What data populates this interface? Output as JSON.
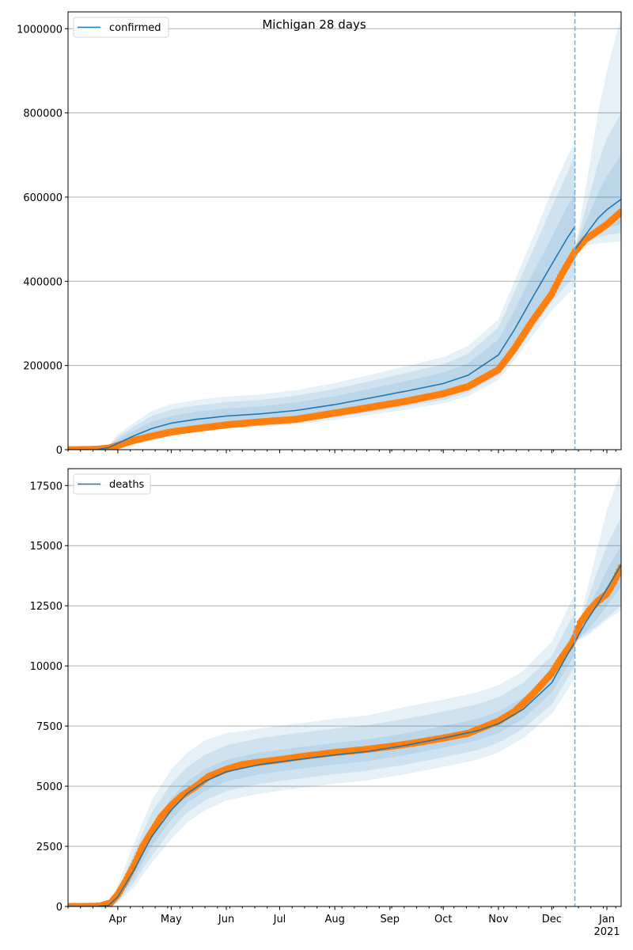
{
  "chart_data": [
    {
      "type": "line",
      "title": "Michigan 28 days",
      "legend": {
        "label": "confirmed",
        "placement": "top-left"
      },
      "xlabel": "",
      "ylabel": "",
      "x_range": [
        "2020-03-04",
        "2021-01-09"
      ],
      "ylim": [
        0,
        1040000
      ],
      "yticks": [
        0,
        200000,
        400000,
        600000,
        800000,
        1000000
      ],
      "ytick_labels": [
        "0",
        "200000",
        "400000",
        "600000",
        "800000",
        "1000000"
      ],
      "grid": "horizontal",
      "forecast_start": "2020-12-14",
      "model": {
        "dates": [
          "2020-03-04",
          "2020-03-20",
          "2020-03-27",
          "2020-04-01",
          "2020-04-10",
          "2020-04-20",
          "2020-05-01",
          "2020-05-15",
          "2020-06-01",
          "2020-06-20",
          "2020-07-10",
          "2020-08-01",
          "2020-08-20",
          "2020-09-10",
          "2020-10-01",
          "2020-10-15",
          "2020-11-01",
          "2020-11-10",
          "2020-11-20",
          "2020-12-01",
          "2020-12-10",
          "2020-12-14"
        ],
        "median": [
          0,
          0,
          5000,
          15000,
          33000,
          50000,
          63000,
          72000,
          80000,
          85000,
          93000,
          107000,
          122000,
          139000,
          157000,
          177000,
          225000,
          285000,
          360000,
          440000,
          505000,
          530000
        ],
        "bands": [
          {
            "lower": [
              0,
              0,
              3000,
              10000,
              24000,
              37000,
              47000,
              55000,
              62000,
              66000,
              73000,
              85000,
              98000,
              113000,
              129000,
              147000,
              190000,
              240000,
              305000,
              375000,
              425000,
              445000
            ],
            "upper": [
              0,
              0,
              8000,
              24000,
              45000,
              66000,
              80000,
              90000,
              98000,
              103000,
              112000,
              127000,
              144000,
              163000,
              183000,
              205000,
              262000,
              330000,
              415000,
              505000,
              580000,
              610000
            ]
          },
          {
            "lower": [
              0,
              0,
              2000,
              7000,
              18000,
              30000,
              40000,
              48000,
              55000,
              59000,
              66000,
              77000,
              89000,
              103000,
              118000,
              136000,
              177000,
              225000,
              285000,
              350000,
              395000,
              410000
            ],
            "upper": [
              0,
              0,
              10000,
              30000,
              55000,
              80000,
              95000,
              105000,
              113000,
              118000,
              128000,
              144000,
              162000,
              182000,
              203000,
              228000,
              290000,
              375000,
              470000,
              575000,
              660000,
              700000
            ]
          },
          {
            "lower": [
              0,
              0,
              1500,
              5000,
              14000,
              25000,
              35000,
              43000,
              50000,
              54000,
              60000,
              71000,
              82000,
              95000,
              110000,
              127000,
              166000,
              212000,
              270000,
              330000,
              370000,
              385000
            ],
            "upper": [
              0,
              0,
              12000,
              36000,
              64000,
              92000,
              108000,
              118000,
              126000,
              131000,
              141000,
              158000,
              177000,
              198000,
              220000,
              247000,
              310000,
              400000,
              500000,
              615000,
              700000,
              730000
            ]
          }
        ]
      },
      "forecast": {
        "dates": [
          "2020-12-14",
          "2020-12-20",
          "2020-12-27",
          "2021-01-01",
          "2021-01-09"
        ],
        "median": [
          475000,
          510000,
          550000,
          570000,
          595000
        ],
        "bands": [
          {
            "lower": [
              475000,
              495000,
              515000,
              525000,
              535000
            ],
            "upper": [
              475000,
              540000,
              610000,
              650000,
              700000
            ]
          },
          {
            "lower": [
              475000,
              490000,
              505000,
              510000,
              515000
            ],
            "upper": [
              475000,
              570000,
              680000,
              740000,
              800000
            ]
          },
          {
            "lower": [
              475000,
              485000,
              490000,
              492000,
              495000
            ],
            "upper": [
              475000,
              620000,
              800000,
              900000,
              1030000
            ]
          }
        ]
      },
      "observed": {
        "dates": [
          "2020-03-04",
          "2020-03-10",
          "2020-03-20",
          "2020-03-27",
          "2020-04-01",
          "2020-04-10",
          "2020-04-20",
          "2020-05-01",
          "2020-05-15",
          "2020-06-01",
          "2020-06-20",
          "2020-07-10",
          "2020-08-01",
          "2020-08-20",
          "2020-09-10",
          "2020-10-01",
          "2020-10-15",
          "2020-11-01",
          "2020-11-10",
          "2020-11-20",
          "2020-12-01",
          "2020-12-07",
          "2020-12-14",
          "2020-12-20",
          "2020-12-27",
          "2021-01-01",
          "2021-01-09"
        ],
        "values": [
          0,
          0,
          1000,
          4000,
          10000,
          22000,
          32000,
          42000,
          50000,
          59000,
          66000,
          72000,
          87000,
          100000,
          115000,
          133000,
          150000,
          190000,
          240000,
          305000,
          370000,
          420000,
          470000,
          500000,
          520000,
          535000,
          565000
        ]
      },
      "colors": {
        "model": "#1f77b4",
        "observed": "#ff7f0e",
        "band": "#1f77b4",
        "forecast_line": "#1f77b4"
      }
    },
    {
      "type": "line",
      "legend": {
        "label": "deaths",
        "placement": "top-left"
      },
      "xlabel": "",
      "ylabel": "",
      "x_range": [
        "2020-03-04",
        "2021-01-09"
      ],
      "x_tick_labels": [
        "Apr",
        "May",
        "Jun",
        "Jul",
        "Aug",
        "Sep",
        "Oct",
        "Nov",
        "Dec",
        "Jan"
      ],
      "x_tick_dates": [
        "2020-04-01",
        "2020-05-01",
        "2020-06-01",
        "2020-07-01",
        "2020-08-01",
        "2020-09-01",
        "2020-10-01",
        "2020-11-01",
        "2020-12-01",
        "2021-01-01"
      ],
      "x_year_label": "2021",
      "ylim": [
        0,
        18200
      ],
      "yticks": [
        0,
        2500,
        5000,
        7500,
        10000,
        12500,
        15000,
        17500
      ],
      "ytick_labels": [
        "0",
        "2500",
        "5000",
        "7500",
        "10000",
        "12500",
        "15000",
        "17500"
      ],
      "grid": "horizontal",
      "forecast_start": "2020-12-14",
      "model": {
        "dates": [
          "2020-03-04",
          "2020-03-20",
          "2020-03-27",
          "2020-04-01",
          "2020-04-10",
          "2020-04-20",
          "2020-05-01",
          "2020-05-10",
          "2020-05-20",
          "2020-06-01",
          "2020-06-20",
          "2020-07-10",
          "2020-08-01",
          "2020-08-20",
          "2020-09-10",
          "2020-10-01",
          "2020-10-20",
          "2020-11-01",
          "2020-11-15",
          "2020-12-01",
          "2020-12-10",
          "2020-12-14"
        ],
        "median": [
          0,
          0,
          50,
          400,
          1500,
          2900,
          4000,
          4700,
          5200,
          5600,
          5900,
          6100,
          6300,
          6450,
          6700,
          7000,
          7300,
          7600,
          8200,
          9300,
          10500,
          11000
        ],
        "bands": [
          {
            "lower": [
              0,
              0,
              30,
              300,
              1200,
              2500,
              3600,
              4300,
              4800,
              5200,
              5500,
              5700,
              5900,
              6050,
              6300,
              6600,
              6900,
              7200,
              7800,
              8900,
              10000,
              10500
            ],
            "upper": [
              0,
              0,
              80,
              550,
              1800,
              3300,
              4500,
              5200,
              5700,
              6100,
              6400,
              6600,
              6800,
              6950,
              7200,
              7500,
              7800,
              8100,
              8700,
              9800,
              11000,
              11500
            ]
          },
          {
            "lower": [
              0,
              0,
              20,
              200,
              1000,
              2100,
              3200,
              3900,
              4400,
              4800,
              5100,
              5300,
              5500,
              5650,
              5900,
              6200,
              6500,
              6800,
              7400,
              8400,
              9500,
              10000
            ],
            "upper": [
              0,
              0,
              120,
              700,
              2200,
              3900,
              5100,
              5800,
              6300,
              6700,
              7000,
              7200,
              7400,
              7550,
              7800,
              8100,
              8400,
              8700,
              9300,
              10400,
              11700,
              12200
            ]
          },
          {
            "lower": [
              0,
              0,
              10,
              150,
              800,
              1800,
              2800,
              3500,
              4000,
              4400,
              4700,
              4900,
              5100,
              5250,
              5500,
              5800,
              6100,
              6400,
              7000,
              8000,
              9000,
              9500
            ],
            "upper": [
              0,
              0,
              150,
              900,
              2600,
              4400,
              5700,
              6400,
              6900,
              7200,
              7400,
              7600,
              7800,
              7950,
              8300,
              8600,
              8900,
              9200,
              9800,
              11000,
              12400,
              13000
            ]
          }
        ]
      },
      "forecast": {
        "dates": [
          "2020-12-14",
          "2020-12-20",
          "2020-12-27",
          "2021-01-01",
          "2021-01-09"
        ],
        "median": [
          11000,
          11800,
          12600,
          13200,
          14200
        ],
        "bands": [
          {
            "lower": [
              11000,
              11400,
              12000,
              12500,
              13300
            ],
            "upper": [
              11000,
              12200,
              13200,
              14000,
              15000
            ]
          },
          {
            "lower": [
              11000,
              11300,
              11700,
              12000,
              12500
            ],
            "upper": [
              11000,
              12500,
              14000,
              15000,
              16200
            ]
          },
          {
            "lower": [
              11000,
              11200,
              11600,
              11900,
              12300
            ],
            "upper": [
              11000,
              12900,
              15000,
              16500,
              18100
            ]
          }
        ]
      },
      "observed": {
        "dates": [
          "2020-03-04",
          "2020-03-15",
          "2020-03-22",
          "2020-03-28",
          "2020-04-01",
          "2020-04-05",
          "2020-04-10",
          "2020-04-15",
          "2020-04-20",
          "2020-04-25",
          "2020-05-01",
          "2020-05-07",
          "2020-05-15",
          "2020-05-22",
          "2020-06-01",
          "2020-06-10",
          "2020-06-20",
          "2020-07-01",
          "2020-07-15",
          "2020-08-01",
          "2020-08-15",
          "2020-09-01",
          "2020-09-15",
          "2020-10-01",
          "2020-10-15",
          "2020-11-01",
          "2020-11-10",
          "2020-11-20",
          "2020-12-01",
          "2020-12-07",
          "2020-12-12",
          "2020-12-14",
          "2020-12-17",
          "2020-12-22",
          "2020-12-27",
          "2021-01-01",
          "2021-01-05",
          "2021-01-09"
        ],
        "values": [
          0,
          0,
          20,
          150,
          500,
          1000,
          1700,
          2500,
          3100,
          3700,
          4200,
          4600,
          5000,
          5400,
          5700,
          5900,
          6000,
          6100,
          6250,
          6400,
          6500,
          6650,
          6800,
          7000,
          7200,
          7700,
          8100,
          8800,
          9700,
          10400,
          10900,
          11200,
          11800,
          12300,
          12700,
          13000,
          13500,
          14100
        ]
      },
      "colors": {
        "model": "#1f77b4",
        "observed": "#ff7f0e",
        "band": "#1f77b4",
        "forecast_line": "#1f77b4"
      }
    }
  ]
}
